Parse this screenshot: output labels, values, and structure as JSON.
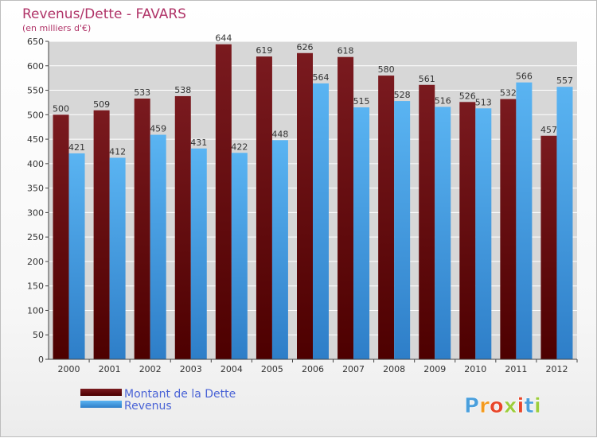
{
  "chart_data": {
    "type": "bar",
    "title": "Revenus/Dette - FAVARS",
    "subtitle": "(en milliers d'€)",
    "categories": [
      "2000",
      "2001",
      "2002",
      "2003",
      "2004",
      "2005",
      "2006",
      "2007",
      "2008",
      "2009",
      "2010",
      "2011",
      "2012"
    ],
    "series": [
      {
        "name": "Montant de la Dette",
        "values": [
          500,
          509,
          533,
          538,
          644,
          619,
          626,
          618,
          580,
          561,
          526,
          532,
          457
        ],
        "color": "#6b0d12"
      },
      {
        "name": "Revenus",
        "values": [
          421,
          412,
          459,
          431,
          422,
          448,
          564,
          515,
          528,
          516,
          513,
          566,
          557
        ],
        "color": "#4aa3e6"
      }
    ],
    "ylim": [
      0,
      650
    ],
    "yticks": [
      0,
      50,
      100,
      150,
      200,
      250,
      300,
      350,
      400,
      450,
      500,
      550,
      600,
      650
    ],
    "grid": true,
    "legend_position": "bottom-left",
    "logo_text": "Proxiti"
  }
}
